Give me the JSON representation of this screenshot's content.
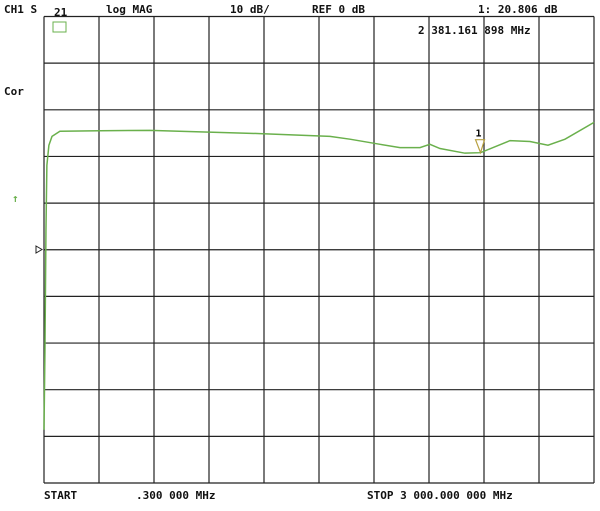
{
  "header": {
    "channel": "CH1 S",
    "param": "21",
    "format": "log MAG",
    "scale": "10 dB/",
    "ref": "REF 0 dB",
    "marker_readout": "1: 20.806 dB",
    "marker_freq": "2 381.161 898 MHz"
  },
  "side": {
    "correction": "Cor",
    "ref_arrow": "↑"
  },
  "footer": {
    "start_label": "START",
    "start_value": ".300 000 MHz",
    "stop": "STOP 3 000.000 000 MHz"
  },
  "colors": {
    "trace": "#6ab04c",
    "grid": "#222222",
    "marker": "#b8a040"
  },
  "chart_data": {
    "type": "line",
    "xlabel": "",
    "ylabel": "",
    "xlim": [
      0.3,
      3000
    ],
    "ylim": [
      -50,
      50
    ],
    "ref_level": 0,
    "divisions": {
      "x": 10,
      "y": 10
    },
    "grid": true,
    "series": [
      {
        "x": [
          0.3,
          5.5,
          11,
          16,
          27,
          44,
          87,
          305,
          578,
          1178,
          1560,
          1669,
          1833,
          1942,
          2051,
          2105,
          2160,
          2296,
          2381.161898,
          2542,
          2651,
          2749,
          2842,
          3000
        ],
        "y": [
          -38.6,
          -21.5,
          4.2,
          18.1,
          22.4,
          24.3,
          25.4,
          25.5,
          25.6,
          24.9,
          24.3,
          23.7,
          22.6,
          21.9,
          21.9,
          22.6,
          21.7,
          20.7,
          20.806,
          23.4,
          23.2,
          22.4,
          23.7,
          27.3
        ]
      }
    ],
    "markers": [
      {
        "label": "1",
        "x": 2381.161898,
        "y": 20.806
      }
    ]
  }
}
